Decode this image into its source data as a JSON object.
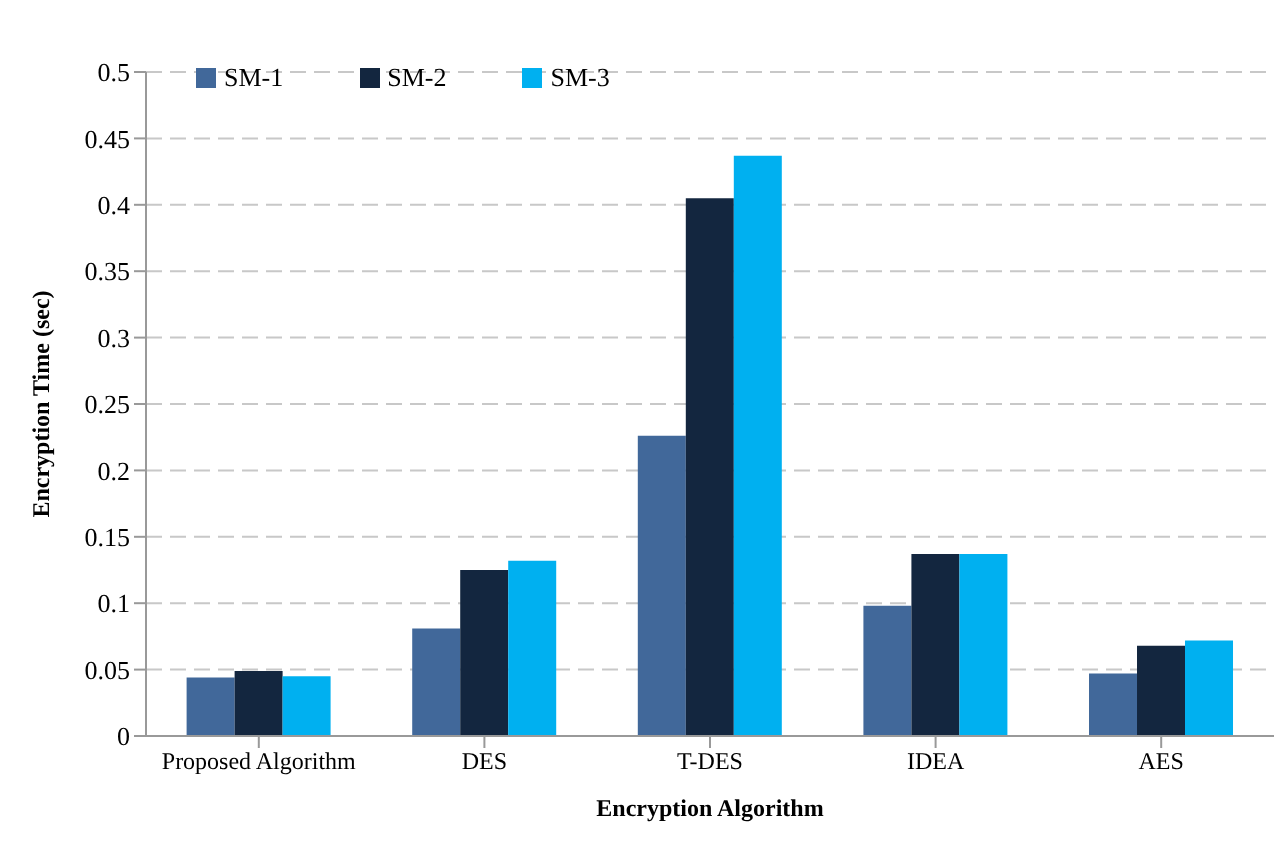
{
  "chart_data": {
    "type": "bar",
    "xlabel": "Encryption Algorithm",
    "ylabel": "Encryption Time (sec)",
    "categories": [
      "Proposed Algorithm",
      "DES",
      "T-DES",
      "IDEA",
      "AES"
    ],
    "series": [
      {
        "name": "SM-1",
        "color": "#41689a",
        "values": [
          0.044,
          0.081,
          0.226,
          0.098,
          0.047
        ]
      },
      {
        "name": "SM-2",
        "color": "#13263f",
        "values": [
          0.049,
          0.125,
          0.405,
          0.137,
          0.068
        ]
      },
      {
        "name": "SM-3",
        "color": "#00b0f0",
        "values": [
          0.045,
          0.132,
          0.437,
          0.137,
          0.072
        ]
      }
    ],
    "ylim": [
      0,
      0.5
    ],
    "yticks": [
      0,
      0.05,
      0.1,
      0.15,
      0.2,
      0.25,
      0.3,
      0.35,
      0.4,
      0.45,
      0.5
    ],
    "grid": "y",
    "legend": "top left"
  }
}
